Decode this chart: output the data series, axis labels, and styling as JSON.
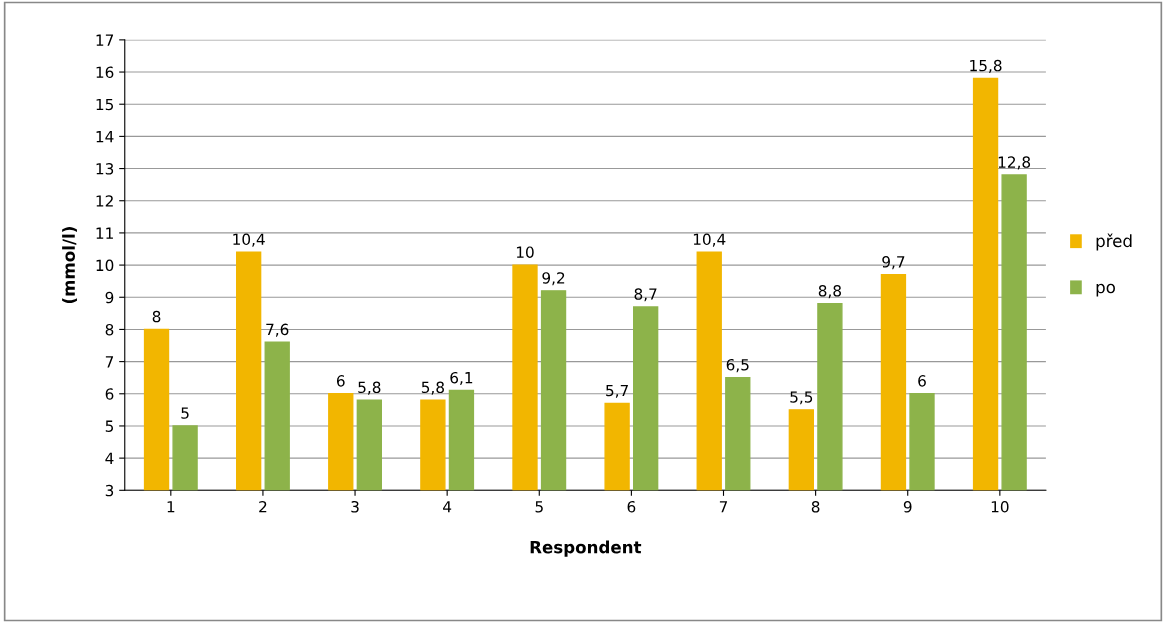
{
  "chart_data": {
    "type": "bar",
    "xlabel": "Respondent",
    "ylabel": "(mmol/l)",
    "categories": [
      "1",
      "2",
      "3",
      "4",
      "5",
      "6",
      "7",
      "8",
      "9",
      "10"
    ],
    "series": [
      {
        "name": "před",
        "color": "#f2b600",
        "values": [
          8,
          10.4,
          6,
          5.8,
          10,
          5.7,
          10.4,
          5.5,
          9.7,
          15.8
        ],
        "value_labels": [
          "8",
          "10,4",
          "6",
          "5,8",
          "10",
          "5,7",
          "10,4",
          "5,5",
          "9,7",
          "15,8"
        ]
      },
      {
        "name": "po",
        "color": "#8db34a",
        "values": [
          5,
          7.6,
          5.8,
          6.1,
          9.2,
          8.7,
          6.5,
          8.8,
          6,
          12.8
        ],
        "value_labels": [
          "5",
          "7,6",
          "5,8",
          "6,1",
          "9,2",
          "8,7",
          "6,5",
          "8,8",
          "6",
          "12,8"
        ]
      }
    ],
    "ylim": [
      3,
      17
    ],
    "yticks": [
      3,
      4,
      5,
      6,
      7,
      8,
      9,
      10,
      11,
      12,
      13,
      14,
      15,
      16,
      17
    ],
    "grid": "y",
    "legend": "right"
  }
}
